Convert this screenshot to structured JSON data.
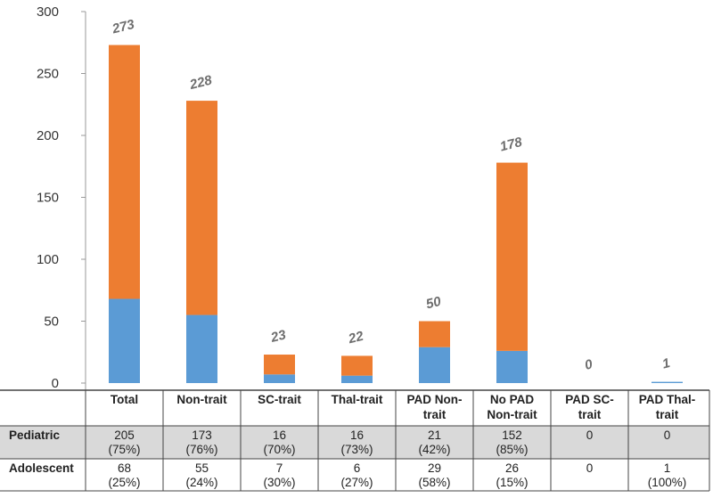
{
  "chart_data": {
    "type": "bar",
    "stacked": true,
    "categories": [
      [
        "Total"
      ],
      [
        "Non-trait"
      ],
      [
        "SC-trait"
      ],
      [
        "Thal-trait"
      ],
      [
        "PAD Non-",
        "trait"
      ],
      [
        "No PAD",
        "Non-trait"
      ],
      [
        "PAD SC-",
        "trait"
      ],
      [
        "PAD Thal-",
        "trait"
      ]
    ],
    "series": [
      {
        "name": "Adolescent",
        "color": "#5b9bd5",
        "values": [
          68,
          55,
          7,
          6,
          29,
          26,
          0,
          1
        ]
      },
      {
        "name": "Pediatric",
        "color": "#ed7d31",
        "values": [
          205,
          173,
          16,
          16,
          21,
          152,
          0,
          0
        ]
      }
    ],
    "totals": [
      "273",
      "228",
      "23",
      "22",
      "50",
      "178",
      "0",
      "1"
    ],
    "yticks": [
      "0",
      "50",
      "100",
      "150",
      "200",
      "250",
      "300"
    ],
    "ylim": [
      0,
      300
    ],
    "table": {
      "rows": [
        {
          "label": "Pediatric",
          "shaded": true,
          "cells": [
            [
              "205",
              "(75%)"
            ],
            [
              "173",
              "(76%)"
            ],
            [
              "16",
              "(70%)"
            ],
            [
              "16",
              "(73%)"
            ],
            [
              "21",
              "(42%)"
            ],
            [
              "152",
              "(85%)"
            ],
            [
              "0"
            ],
            [
              "0"
            ]
          ]
        },
        {
          "label": "Adolescent",
          "shaded": false,
          "cells": [
            [
              "68",
              "(25%)"
            ],
            [
              "55",
              "(24%)"
            ],
            [
              "7",
              "(30%)"
            ],
            [
              "6",
              "(27%)"
            ],
            [
              "29",
              "(58%)"
            ],
            [
              "26",
              "(15%)"
            ],
            [
              "0"
            ],
            [
              "1",
              "(100%)"
            ]
          ]
        }
      ]
    }
  }
}
